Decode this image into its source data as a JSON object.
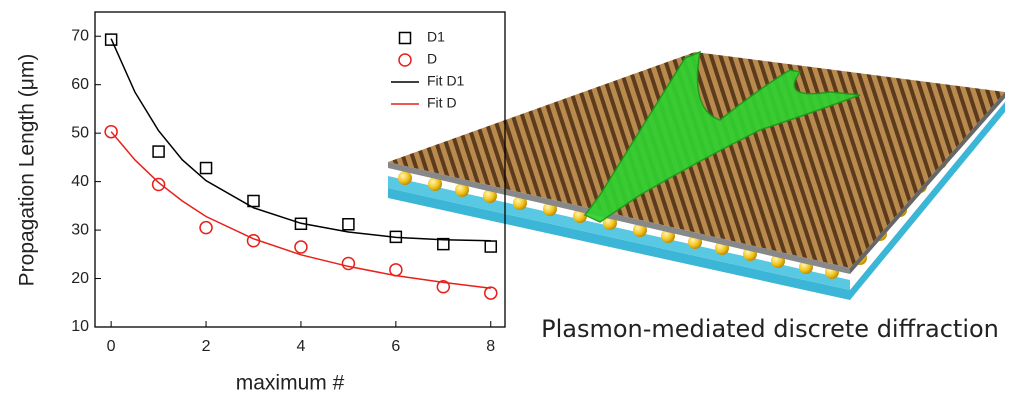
{
  "chart_data": {
    "type": "scatter",
    "xlabel": "maximum #",
    "ylabel": "Propagation Length (μm)",
    "xlim": [
      -0.34,
      8.3
    ],
    "ylim": [
      10,
      75
    ],
    "xticks": [
      0,
      2,
      4,
      6,
      8
    ],
    "yticks": [
      10,
      20,
      30,
      40,
      50,
      60,
      70
    ],
    "legend": "upper right",
    "series": [
      {
        "name": "D1",
        "color": "#000000",
        "marker": "square",
        "x": [
          0,
          1,
          2,
          3,
          4,
          5,
          6,
          7,
          8
        ],
        "values": [
          69.3,
          46.2,
          42.8,
          36,
          31.3,
          31.2,
          28.6,
          27.1,
          26.6
        ]
      },
      {
        "name": "D",
        "color": "#e8201a",
        "marker": "circle",
        "x": [
          0,
          1,
          2,
          3,
          4,
          5,
          6,
          7,
          8
        ],
        "values": [
          50.3,
          39.4,
          30.5,
          27.8,
          26.5,
          23.1,
          21.8,
          18.3,
          17.0
        ]
      },
      {
        "name": "Fit D1",
        "color": "#000000",
        "marker": "line",
        "x": [
          0,
          0.5,
          1,
          1.5,
          2,
          3,
          4,
          5,
          6,
          7,
          8
        ],
        "values": [
          69.5,
          58.5,
          50.5,
          44.5,
          40.2,
          34.6,
          31.4,
          29.6,
          28.5,
          28.0,
          27.8
        ]
      },
      {
        "name": "Fit D",
        "color": "#e8201a",
        "marker": "line",
        "x": [
          0,
          0.5,
          1,
          1.5,
          2,
          3,
          4,
          5,
          6,
          7,
          8
        ],
        "values": [
          50.3,
          44.5,
          39.8,
          36.0,
          32.8,
          28.2,
          24.9,
          22.5,
          20.6,
          19.2,
          18.0
        ]
      }
    ]
  },
  "caption": "Plasmon-mediated discrete diffraction"
}
